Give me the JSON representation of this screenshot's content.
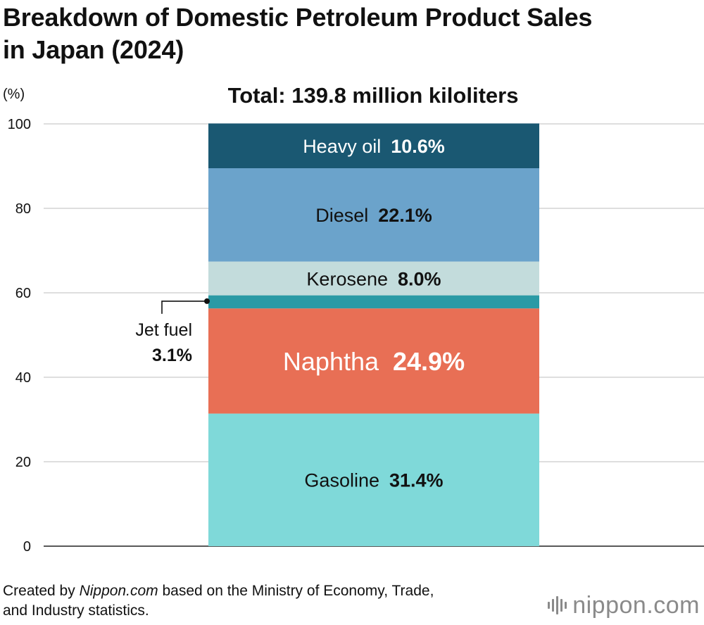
{
  "title_line1": "Breakdown of Domestic Petroleum Product Sales",
  "title_line2": "in Japan (2024)",
  "source": {
    "prefix": "Created by ",
    "publisher": "Nippon.com",
    "rest_line1": " based on the Ministry of Economy, Trade,",
    "line2": "and Industry statistics."
  },
  "logo": {
    "name": "nippon",
    "dot": ".",
    "tld": "com",
    "color": "#8a8a8a"
  },
  "chart_data": {
    "type": "bar",
    "stacked": true,
    "subtitle": "Total: 139.8 million kiloliters",
    "ylabel": "(%)",
    "ylim": [
      0,
      100
    ],
    "yticks": [
      "0",
      "20",
      "40",
      "60",
      "80",
      "100"
    ],
    "grid": true,
    "series": [
      {
        "name": "Gasoline",
        "value": 31.4,
        "label": "31.4%",
        "color": "#7fd9d9",
        "text_color": "#111111",
        "large": false
      },
      {
        "name": "Naphtha",
        "value": 24.9,
        "label": "24.9%",
        "color": "#e86f55",
        "text_color": "#ffffff",
        "large": true
      },
      {
        "name": "Jet fuel",
        "value": 3.1,
        "label": "3.1%",
        "color": "#2a9aa5",
        "text_color": "#111111",
        "callout": true
      },
      {
        "name": "Kerosene",
        "value": 8.0,
        "label": "8.0%",
        "color": "#c3dcdc",
        "text_color": "#111111",
        "large": false
      },
      {
        "name": "Diesel",
        "value": 22.1,
        "label": "22.1%",
        "color": "#6ba3cb",
        "text_color": "#111111",
        "large": false
      },
      {
        "name": "Heavy oil",
        "value": 10.6,
        "label": "10.6%",
        "color": "#1a5872",
        "text_color": "#ffffff",
        "large": false
      }
    ]
  }
}
